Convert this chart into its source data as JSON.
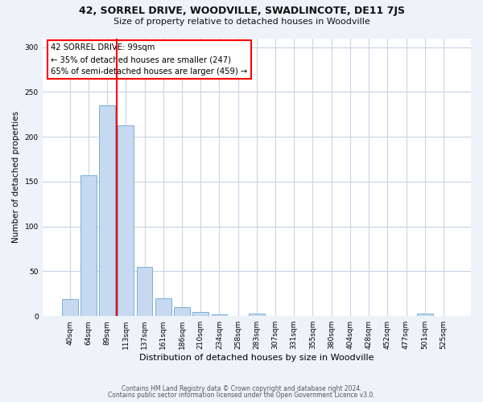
{
  "title": "42, SORREL DRIVE, WOODVILLE, SWADLINCOTE, DE11 7JS",
  "subtitle": "Size of property relative to detached houses in Woodville",
  "xlabel": "Distribution of detached houses by size in Woodville",
  "ylabel": "Number of detached properties",
  "bin_labels": [
    "40sqm",
    "64sqm",
    "89sqm",
    "113sqm",
    "137sqm",
    "161sqm",
    "186sqm",
    "210sqm",
    "234sqm",
    "258sqm",
    "283sqm",
    "307sqm",
    "331sqm",
    "355sqm",
    "380sqm",
    "404sqm",
    "428sqm",
    "452sqm",
    "477sqm",
    "501sqm",
    "525sqm"
  ],
  "bar_heights": [
    19,
    157,
    235,
    213,
    55,
    20,
    10,
    5,
    2,
    0,
    3,
    0,
    0,
    0,
    0,
    0,
    0,
    0,
    0,
    3,
    0
  ],
  "bar_color": "#c6d9f0",
  "bar_edge_color": "#7bafd4",
  "red_line_x": 2.5,
  "ylim": [
    0,
    310
  ],
  "yticks": [
    0,
    50,
    100,
    150,
    200,
    250,
    300
  ],
  "annotation_title": "42 SORREL DRIVE: 99sqm",
  "annotation_line1": "← 35% of detached houses are smaller (247)",
  "annotation_line2": "65% of semi-detached houses are larger (459) →",
  "footer1": "Contains HM Land Registry data © Crown copyright and database right 2024.",
  "footer2": "Contains public sector information licensed under the Open Government Licence v3.0.",
  "bg_color": "#eef2f9",
  "plot_bg_color": "#ffffff",
  "grid_color": "#c8d4e8"
}
